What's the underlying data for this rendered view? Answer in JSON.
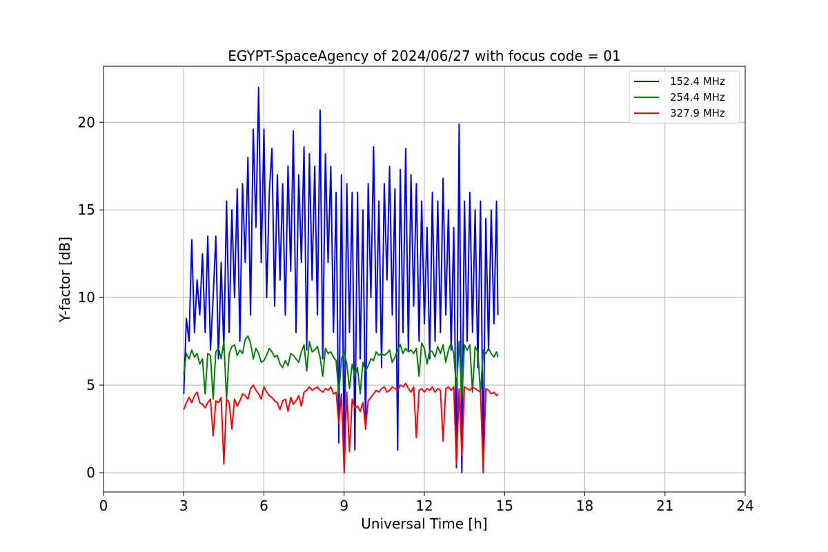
{
  "chart_data": {
    "type": "line",
    "title": "EGYPT-SpaceAgency of 2024/06/27 with focus code = 01",
    "xlabel": "Universal Time [h]",
    "ylabel": "Y-factor [dB]",
    "xlim": [
      0,
      24
    ],
    "ylim": [
      -1.1,
      23.2
    ],
    "x_ticks": [
      0,
      3,
      6,
      9,
      12,
      15,
      18,
      21,
      24
    ],
    "x_tick_labels": [
      "0",
      "3",
      "6",
      "9",
      "12",
      "15",
      "18",
      "21",
      "24"
    ],
    "y_ticks": [
      0,
      5,
      10,
      15,
      20
    ],
    "y_tick_labels": [
      "0",
      "5",
      "10",
      "15",
      "20"
    ],
    "grid": true,
    "legend_position": "top-right",
    "series": [
      {
        "name": "152.4 MHz",
        "color": "#0000ff",
        "x": [
          3.0,
          3.1,
          3.2,
          3.3,
          3.4,
          3.5,
          3.6,
          3.7,
          3.8,
          3.9,
          4.0,
          4.1,
          4.2,
          4.3,
          4.4,
          4.5,
          4.6,
          4.7,
          4.8,
          4.9,
          5.0,
          5.1,
          5.2,
          5.3,
          5.4,
          5.5,
          5.6,
          5.7,
          5.8,
          5.9,
          6.0,
          6.1,
          6.2,
          6.3,
          6.4,
          6.5,
          6.6,
          6.7,
          6.8,
          6.9,
          7.0,
          7.1,
          7.2,
          7.3,
          7.4,
          7.5,
          7.6,
          7.7,
          7.8,
          7.9,
          8.0,
          8.1,
          8.2,
          8.3,
          8.4,
          8.5,
          8.6,
          8.7,
          8.8,
          8.9,
          9.0,
          9.1,
          9.2,
          9.3,
          9.4,
          9.5,
          9.6,
          9.7,
          9.8,
          9.9,
          10.0,
          10.1,
          10.2,
          10.3,
          10.4,
          10.5,
          10.6,
          10.7,
          10.8,
          10.9,
          11.0,
          11.1,
          11.2,
          11.3,
          11.4,
          11.5,
          11.6,
          11.7,
          11.8,
          11.9,
          12.0,
          12.1,
          12.2,
          12.3,
          12.4,
          12.5,
          12.6,
          12.7,
          12.8,
          12.9,
          13.0,
          13.1,
          13.2,
          13.3,
          13.4,
          13.5,
          13.6,
          13.7,
          13.8,
          13.9,
          14.0,
          14.1,
          14.2,
          14.3,
          14.4,
          14.5,
          14.6,
          14.7,
          14.75
        ],
        "y": [
          4.5,
          8.8,
          7.5,
          13.3,
          8.0,
          11.0,
          9.0,
          12.5,
          8.0,
          13.5,
          7.0,
          10.0,
          13.5,
          6.5,
          12.0,
          7.0,
          15.5,
          8.0,
          15.0,
          10.0,
          16.2,
          7.5,
          16.5,
          12.0,
          18.0,
          9.0,
          19.6,
          14.0,
          22.0,
          12.0,
          19.6,
          10.0,
          16.0,
          18.5,
          9.5,
          17.0,
          11.0,
          16.5,
          9.0,
          17.5,
          11.5,
          19.5,
          8.0,
          17.0,
          12.0,
          18.6,
          7.0,
          18.2,
          11.0,
          17.5,
          9.0,
          20.7,
          6.5,
          18.2,
          12.0,
          17.5,
          8.0,
          16.0,
          1.7,
          17.0,
          0.1,
          16.5,
          8.0,
          16.0,
          1.3,
          16.0,
          6.5,
          15.0,
          2.5,
          16.5,
          10.0,
          18.6,
          8.0,
          15.5,
          6.0,
          16.5,
          11.0,
          17.5,
          9.0,
          16.2,
          1.3,
          17.3,
          8.0,
          18.5,
          7.0,
          17.0,
          9.5,
          16.5,
          7.5,
          15.5,
          8.5,
          14.0,
          6.5,
          16.0,
          7.5,
          15.5,
          8.0,
          16.8,
          9.0,
          15.0,
          7.0,
          14.0,
          0.3,
          19.9,
          0.0,
          15.5,
          7.5,
          16.0,
          8.0,
          15.0,
          6.0,
          15.5,
          0.8,
          14.5,
          7.0,
          15.0,
          8.5,
          15.5,
          9.0
        ]
      },
      {
        "name": "254.4 MHz",
        "color": "#008000",
        "x": [
          3.0,
          3.1,
          3.2,
          3.3,
          3.4,
          3.5,
          3.6,
          3.7,
          3.8,
          3.9,
          4.0,
          4.1,
          4.2,
          4.3,
          4.4,
          4.5,
          4.6,
          4.7,
          4.8,
          4.9,
          5.0,
          5.1,
          5.2,
          5.3,
          5.4,
          5.5,
          5.6,
          5.7,
          5.8,
          5.9,
          6.0,
          6.1,
          6.2,
          6.3,
          6.4,
          6.5,
          6.6,
          6.7,
          6.8,
          6.9,
          7.0,
          7.1,
          7.2,
          7.3,
          7.4,
          7.5,
          7.6,
          7.7,
          7.8,
          7.9,
          8.0,
          8.1,
          8.2,
          8.3,
          8.4,
          8.5,
          8.6,
          8.7,
          8.8,
          8.9,
          9.0,
          9.1,
          9.2,
          9.3,
          9.4,
          9.5,
          9.6,
          9.7,
          9.8,
          9.9,
          10.0,
          10.1,
          10.2,
          10.3,
          10.4,
          10.5,
          10.6,
          10.7,
          10.8,
          10.9,
          11.0,
          11.1,
          11.2,
          11.3,
          11.4,
          11.5,
          11.6,
          11.7,
          11.8,
          11.9,
          12.0,
          12.1,
          12.2,
          12.3,
          12.4,
          12.5,
          12.6,
          12.7,
          12.8,
          12.9,
          13.0,
          13.1,
          13.2,
          13.3,
          13.4,
          13.5,
          13.6,
          13.7,
          13.8,
          13.9,
          14.0,
          14.1,
          14.2,
          14.3,
          14.4,
          14.5,
          14.6,
          14.7,
          14.75
        ],
        "y": [
          5.6,
          6.8,
          6.5,
          7.0,
          6.6,
          6.8,
          6.2,
          6.5,
          4.5,
          6.8,
          6.7,
          4.2,
          6.9,
          7.1,
          6.5,
          7.5,
          4.2,
          6.8,
          7.2,
          7.3,
          6.7,
          7.0,
          6.8,
          7.6,
          7.8,
          7.4,
          6.5,
          7.1,
          6.8,
          6.3,
          6.4,
          6.7,
          7.1,
          6.9,
          6.6,
          6.7,
          6.2,
          6.0,
          6.4,
          6.1,
          6.8,
          6.7,
          6.5,
          6.3,
          6.9,
          7.3,
          5.8,
          7.5,
          6.9,
          7.0,
          7.2,
          6.6,
          5.5,
          7.1,
          6.8,
          6.9,
          6.6,
          6.4,
          4.5,
          6.5,
          6.9,
          6.2,
          4.8,
          6.2,
          5.5,
          6.0,
          4.5,
          6.3,
          5.8,
          6.1,
          6.5,
          6.4,
          6.9,
          6.7,
          6.8,
          6.7,
          6.8,
          7.0,
          6.3,
          6.6,
          7.0,
          7.3,
          6.8,
          7.1,
          6.9,
          7.0,
          6.8,
          7.1,
          5.5,
          7.4,
          7.1,
          6.2,
          7.0,
          6.9,
          6.6,
          7.2,
          6.8,
          7.3,
          6.3,
          7.0,
          7.4,
          6.8,
          4.8,
          7.5,
          4.2,
          7.3,
          7.0,
          7.3,
          4.6,
          7.2,
          6.9,
          4.5,
          7.0,
          6.8,
          7.1,
          6.8,
          6.6,
          6.9,
          6.6
        ]
      },
      {
        "name": "327.9 MHz",
        "color": "#ff0000",
        "x": [
          3.0,
          3.1,
          3.2,
          3.3,
          3.4,
          3.5,
          3.6,
          3.7,
          3.8,
          3.9,
          4.0,
          4.1,
          4.2,
          4.3,
          4.4,
          4.5,
          4.6,
          4.7,
          4.8,
          4.9,
          5.0,
          5.1,
          5.2,
          5.3,
          5.4,
          5.5,
          5.6,
          5.7,
          5.8,
          5.9,
          6.0,
          6.1,
          6.2,
          6.3,
          6.4,
          6.5,
          6.6,
          6.7,
          6.8,
          6.9,
          7.0,
          7.1,
          7.2,
          7.3,
          7.4,
          7.5,
          7.6,
          7.7,
          7.8,
          7.9,
          8.0,
          8.1,
          8.2,
          8.3,
          8.4,
          8.5,
          8.6,
          8.7,
          8.8,
          8.9,
          9.0,
          9.1,
          9.2,
          9.3,
          9.4,
          9.5,
          9.6,
          9.7,
          9.8,
          9.9,
          10.0,
          10.1,
          10.2,
          10.3,
          10.4,
          10.5,
          10.6,
          10.7,
          10.8,
          10.9,
          11.0,
          11.1,
          11.2,
          11.3,
          11.4,
          11.5,
          11.6,
          11.7,
          11.8,
          11.9,
          12.0,
          12.1,
          12.2,
          12.3,
          12.4,
          12.5,
          12.6,
          12.7,
          12.8,
          12.9,
          13.0,
          13.1,
          13.2,
          13.3,
          13.4,
          13.5,
          13.6,
          13.7,
          13.8,
          13.9,
          14.0,
          14.1,
          14.2,
          14.3,
          14.4,
          14.5,
          14.6,
          14.7,
          14.75
        ],
        "y": [
          3.6,
          4.0,
          4.3,
          4.0,
          4.4,
          4.6,
          4.0,
          3.9,
          3.7,
          4.0,
          4.2,
          2.1,
          4.1,
          4.0,
          4.3,
          0.5,
          4.2,
          4.0,
          2.5,
          4.2,
          3.8,
          4.1,
          4.5,
          4.4,
          4.2,
          4.8,
          5.0,
          4.7,
          4.5,
          4.2,
          4.9,
          4.6,
          4.4,
          4.3,
          4.1,
          4.0,
          3.6,
          4.1,
          4.2,
          3.5,
          4.3,
          3.9,
          4.1,
          4.4,
          3.8,
          4.6,
          4.7,
          4.9,
          4.7,
          4.8,
          4.9,
          4.7,
          4.6,
          4.8,
          4.7,
          4.9,
          4.5,
          4.6,
          2.8,
          4.5,
          0.0,
          4.6,
          1.2,
          4.2,
          3.7,
          3.8,
          3.5,
          4.0,
          2.6,
          4.1,
          4.3,
          4.5,
          4.7,
          4.6,
          4.8,
          4.9,
          4.6,
          4.7,
          4.9,
          4.8,
          4.7,
          5.0,
          4.9,
          5.1,
          4.8,
          4.6,
          4.9,
          2.0,
          4.7,
          4.8,
          4.6,
          4.8,
          4.7,
          4.9,
          4.6,
          4.8,
          4.7,
          1.8,
          4.8,
          4.9,
          4.7,
          4.9,
          0.5,
          4.8,
          1.0,
          4.9,
          4.8,
          4.7,
          4.9,
          4.8,
          4.7,
          4.6,
          0.0,
          4.8,
          4.7,
          4.5,
          4.6,
          4.4,
          4.5
        ]
      }
    ]
  }
}
